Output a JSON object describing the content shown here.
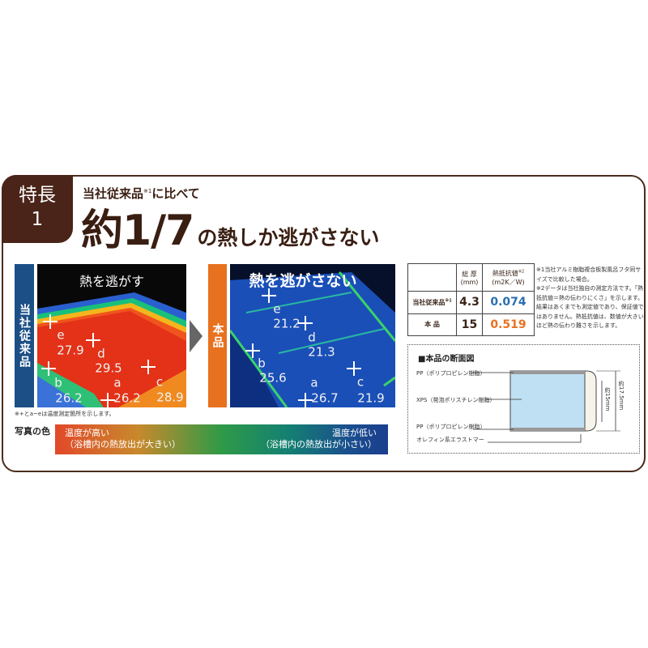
{
  "feature_badge": {
    "line1": "特長",
    "line2": "1"
  },
  "subtitle": {
    "text": "当社従来品",
    "sup": "※1",
    "tail": "に比べて"
  },
  "headline": {
    "big": "約1/7",
    "rest": "の熱しか逃がさない"
  },
  "old_product": {
    "label": "当社従来品",
    "title": "熱を逃がす",
    "points": [
      {
        "id": "e",
        "value": "27.9"
      },
      {
        "id": "d",
        "value": "29.5"
      },
      {
        "id": "c",
        "value": "28.9"
      },
      {
        "id": "b",
        "value": "26.2"
      },
      {
        "id": "a",
        "value": "26.2"
      }
    ]
  },
  "new_product": {
    "label": "本品",
    "title": "熱を逃がさない",
    "points": [
      {
        "id": "e",
        "value": "21.2"
      },
      {
        "id": "d",
        "value": "21.3"
      },
      {
        "id": "b",
        "value": "25.6"
      },
      {
        "id": "a",
        "value": "26.7"
      },
      {
        "id": "c",
        "value": "21.9"
      }
    ]
  },
  "measurement_note": "※+とa~eは温度測定箇所を示します。",
  "color_legend": {
    "label": "写真の色",
    "high": "温度が高い",
    "high_sub": "（浴槽内の熱放出が大きい）",
    "low": "温度が低い",
    "low_sub": "（浴槽内の熱放出が小さい）",
    "colors": [
      "#e2482a",
      "#2e9a47",
      "#1b3e8e"
    ]
  },
  "spec_table": {
    "headers": [
      "",
      "総 厚\n(mm)",
      "熱抵抗値※2\n(m2K／W)"
    ],
    "h_thick": "総 厚",
    "h_thick_unit": "(mm)",
    "h_res": "熱抵抗値",
    "h_res_sup": "※2",
    "h_res_unit": "(m2K／W)",
    "rows": [
      {
        "name": "当社従来品",
        "sup": "※1",
        "thickness": "4.3",
        "resistance": "0.074",
        "color": "#2a6fb0"
      },
      {
        "name": "本 品",
        "sup": "",
        "thickness": "15",
        "resistance": "0.519",
        "color": "#e8711f"
      }
    ]
  },
  "notes": [
    "※1当社アルミ樹脂複合板製風呂フタ同サイズで比較した場合。",
    "※2データは当社独自の測定方法です。「熱抵抗値＝熱の伝わりにくさ」を示します。結果はあくまでも測定値であり、保証値ではありません。熱抵抗値は、数値が大きいほど熱の伝わり難さを示します。"
  ],
  "cross_section": {
    "title": "■本品の断面図",
    "layers": [
      "PP（ポリプロピレン樹脂）",
      "XPS（発泡ポリスチレン樹脂）",
      "PP（ポリプロピレン樹脂）",
      "オレフィン系エラストマー"
    ],
    "dim_inner": "約15mm",
    "dim_outer": "約17.5mm"
  }
}
